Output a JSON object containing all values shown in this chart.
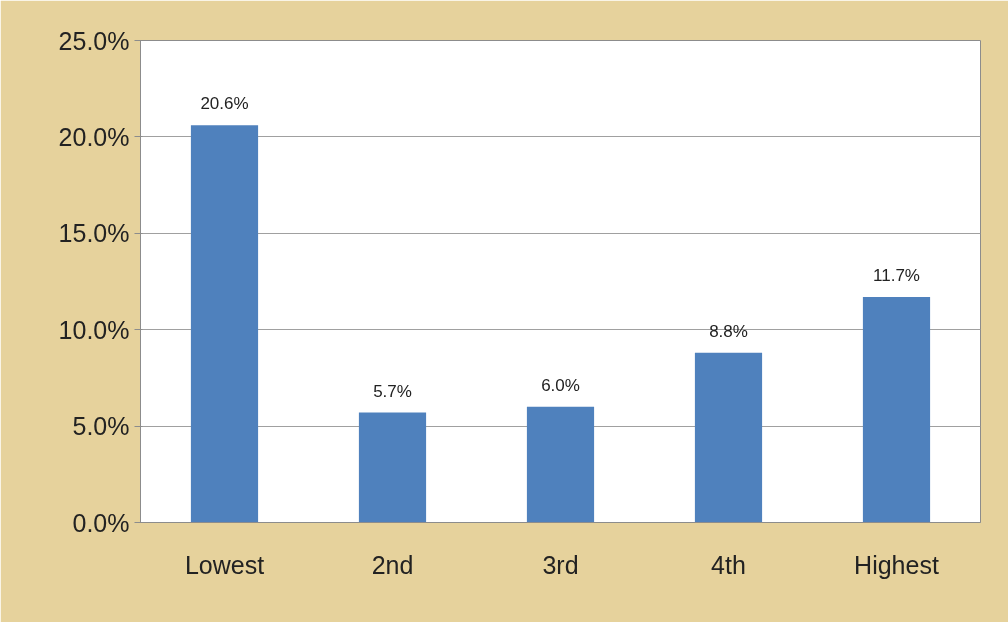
{
  "chart_data": {
    "type": "bar",
    "categories": [
      "Lowest",
      "2nd",
      "3rd",
      "4th",
      "Highest"
    ],
    "values": [
      20.6,
      5.7,
      6.0,
      8.8,
      11.7
    ],
    "color": "#4f81bd",
    "data_labels": true,
    "value_labels": [
      "20.6%",
      "5.7%",
      "6.0%",
      "8.8%",
      "11.7%"
    ],
    "ylim": [
      0,
      25
    ],
    "yticks": [
      {
        "value": 0,
        "label": "0.0%"
      },
      {
        "value": 5,
        "label": "5.0%"
      },
      {
        "value": 10,
        "label": "10.0%"
      },
      {
        "value": 15,
        "label": "15.0%"
      },
      {
        "value": 20,
        "label": "20.0%"
      },
      {
        "value": 25,
        "label": "25.0%"
      }
    ],
    "grid": "y"
  }
}
